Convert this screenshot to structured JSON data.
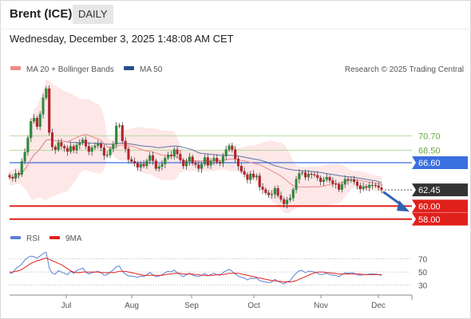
{
  "header": {
    "instrument": "Brent (ICE)",
    "timeframe": "DAILY",
    "datetime": "Wednesday, December 3, 2025 1:48:08 AM CET",
    "credit": "Research © 2025 Trading Central"
  },
  "legend": {
    "ma20": "MA 20 + Bollinger Bands",
    "ma50": "MA 50",
    "rsi": "RSI",
    "ma9": "9MA"
  },
  "colors": {
    "ma20": "#f08a8a",
    "ma50": "#2a4d8f",
    "bollinger_fill": "#fde3e3",
    "pivot_line": "#3a6fe0",
    "resistance_line": "#b6d99a",
    "support_line": "#e0201b",
    "current_price": "#333333",
    "arrow": "#2d62b4",
    "rsi": "#5b7fd6",
    "rsi_ma": "#e02020"
  },
  "chart_data": [
    {
      "type": "candlestick",
      "title": "",
      "x_labels": [
        "Jul",
        "Aug",
        "Sep",
        "Oct",
        "Nov",
        "Dec"
      ],
      "ylim": [
        57,
        79
      ],
      "levels": [
        {
          "label": "70.70",
          "value": 70.7,
          "kind": "resistance"
        },
        {
          "label": "68.50",
          "value": 68.5,
          "kind": "resistance"
        },
        {
          "label": "66.60",
          "value": 66.6,
          "kind": "pivot"
        },
        {
          "label": "62.45",
          "value": 62.45,
          "kind": "last"
        },
        {
          "label": "60.00",
          "value": 60.0,
          "kind": "support"
        },
        {
          "label": "58.00",
          "value": 58.0,
          "kind": "support"
        }
      ],
      "closes": [
        64.4,
        64.2,
        65.0,
        64.8,
        66.8,
        68.2,
        70.4,
        72.9,
        73.4,
        72.1,
        74.0,
        76.5,
        77.9,
        71.2,
        69.0,
        68.6,
        69.7,
        69.1,
        68.8,
        68.3,
        69.1,
        68.5,
        69.3,
        69.6,
        70.1,
        69.1,
        68.3,
        68.9,
        69.2,
        69.5,
        68.9,
        67.7,
        67.8,
        68.7,
        69.4,
        72.2,
        72.3,
        69.9,
        68.7,
        67.1,
        66.8,
        66.5,
        65.9,
        66.4,
        66.1,
        66.9,
        67.7,
        66.9,
        65.7,
        66.0,
        66.4,
        67.3,
        67.8,
        67.6,
        68.6,
        67.9,
        67.0,
        66.1,
        66.8,
        67.5,
        66.5,
        66.3,
        65.7,
        66.4,
        67.4,
        66.2,
        66.9,
        67.3,
        66.7,
        66.5,
        67.6,
        68.6,
        69.2,
        68.6,
        67.2,
        66.1,
        65.3,
        64.8,
        64.0,
        64.9,
        64.4,
        64.6,
        62.9,
        62.5,
        62.0,
        61.7,
        61.8,
        62.7,
        61.6,
        61.0,
        60.3,
        60.9,
        61.2,
        62.5,
        64.1,
        65.0,
        65.1,
        64.4,
        64.9,
        64.8,
        64.7,
        64.3,
        63.7,
        64.0,
        64.4,
        63.9,
        63.4,
        63.3,
        62.5,
        63.3,
        64.1,
        63.9,
        64.0,
        63.7,
        63.1,
        62.6,
        63.0,
        62.8,
        63.2,
        63.2,
        63.1,
        62.8,
        62.45
      ]
    },
    {
      "type": "line",
      "title": "",
      "ylim": [
        20,
        85
      ],
      "y_ticks": [
        70,
        50,
        30
      ],
      "x_labels": [
        "Jul",
        "Aug",
        "Sep",
        "Oct",
        "Nov",
        "Dec"
      ],
      "series": [
        {
          "name": "RSI",
          "values": [
            48,
            49,
            55,
            58,
            62,
            68,
            72,
            74,
            73,
            71,
            74,
            78,
            80,
            56,
            48,
            47,
            52,
            50,
            48,
            46,
            51,
            48,
            52,
            54,
            56,
            50,
            47,
            49,
            50,
            51,
            49,
            45,
            46,
            50,
            53,
            58,
            59,
            51,
            47,
            44,
            44,
            43,
            42,
            44,
            43,
            46,
            49,
            46,
            43,
            44,
            46,
            49,
            51,
            50,
            53,
            49,
            46,
            43,
            46,
            48,
            45,
            44,
            43,
            45,
            48,
            44,
            46,
            48,
            46,
            45,
            49,
            52,
            54,
            51,
            47,
            44,
            42,
            41,
            38,
            41,
            40,
            41,
            37,
            36,
            35,
            34,
            35,
            39,
            36,
            34,
            32,
            35,
            37,
            43,
            48,
            52,
            52,
            49,
            51,
            51,
            50,
            48,
            46,
            47,
            48,
            46,
            45,
            45,
            43,
            46,
            49,
            48,
            49,
            48,
            46,
            45,
            46,
            46,
            47,
            47,
            47,
            46,
            45
          ]
        },
        {
          "name": "9MA",
          "values": [
            50,
            50,
            51,
            52,
            54,
            57,
            60,
            63,
            65,
            67,
            68,
            70,
            71,
            69,
            67,
            65,
            63,
            61,
            58,
            55,
            52,
            50,
            49,
            49,
            50,
            50,
            50,
            50,
            50,
            50,
            49,
            49,
            49,
            49,
            49,
            50,
            51,
            51,
            51,
            50,
            49,
            48,
            47,
            46,
            45,
            45,
            45,
            45,
            45,
            45,
            45,
            46,
            47,
            47,
            48,
            48,
            48,
            47,
            47,
            47,
            47,
            46,
            46,
            45,
            45,
            45,
            45,
            45,
            46,
            46,
            46,
            47,
            48,
            48,
            48,
            48,
            47,
            46,
            45,
            44,
            43,
            42,
            41,
            40,
            39,
            38,
            37,
            37,
            36,
            36,
            35,
            35,
            35,
            36,
            37,
            39,
            41,
            43,
            45,
            47,
            49,
            50,
            50,
            50,
            49,
            49,
            48,
            48,
            47,
            47,
            47,
            47,
            47,
            47,
            47,
            47,
            46,
            46,
            46,
            46,
            46,
            46,
            46
          ]
        }
      ]
    }
  ]
}
